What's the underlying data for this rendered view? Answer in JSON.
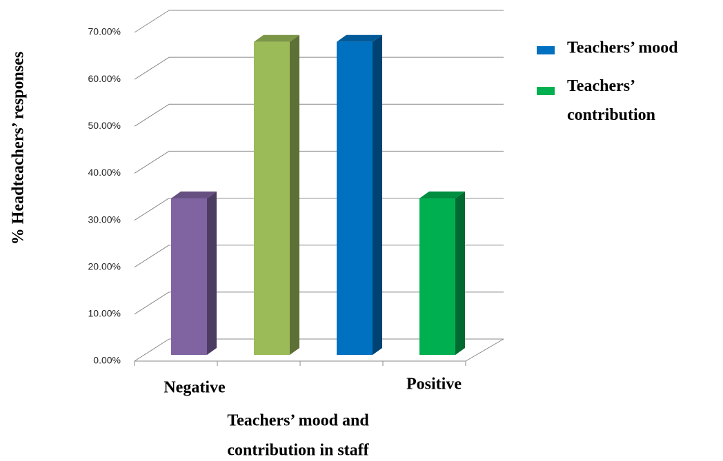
{
  "chart_data": {
    "type": "bar3d",
    "y_label": "% Headteachers’ responses",
    "x_label": [
      "Teachers’ mood and",
      "contribution in staff"
    ],
    "categories": [
      "Negative",
      null,
      null,
      "Positive"
    ],
    "values": [
      33.33,
      66.67,
      66.67,
      33.33
    ],
    "colors": [
      "#8064a2",
      "#9bbb59",
      "#0070c0",
      "#00b050"
    ],
    "legend": [
      {
        "name": "Teachers’ mood",
        "color": "#0070c0"
      },
      {
        "name": "Teachers’ contribution",
        "color": "#00b050"
      }
    ],
    "ylim": [
      0,
      70
    ],
    "yticks": [
      {
        "value": 0,
        "label": "0.00%"
      },
      {
        "value": 10,
        "label": "10.00%"
      },
      {
        "value": 20,
        "label": "20.00%"
      },
      {
        "value": 30,
        "label": "30.00%"
      },
      {
        "value": 40,
        "label": "40.00%"
      },
      {
        "value": 50,
        "label": "50.00%"
      },
      {
        "value": 60,
        "label": "60.00%"
      },
      {
        "value": 70,
        "label": "70.00%"
      }
    ],
    "grid": true
  }
}
